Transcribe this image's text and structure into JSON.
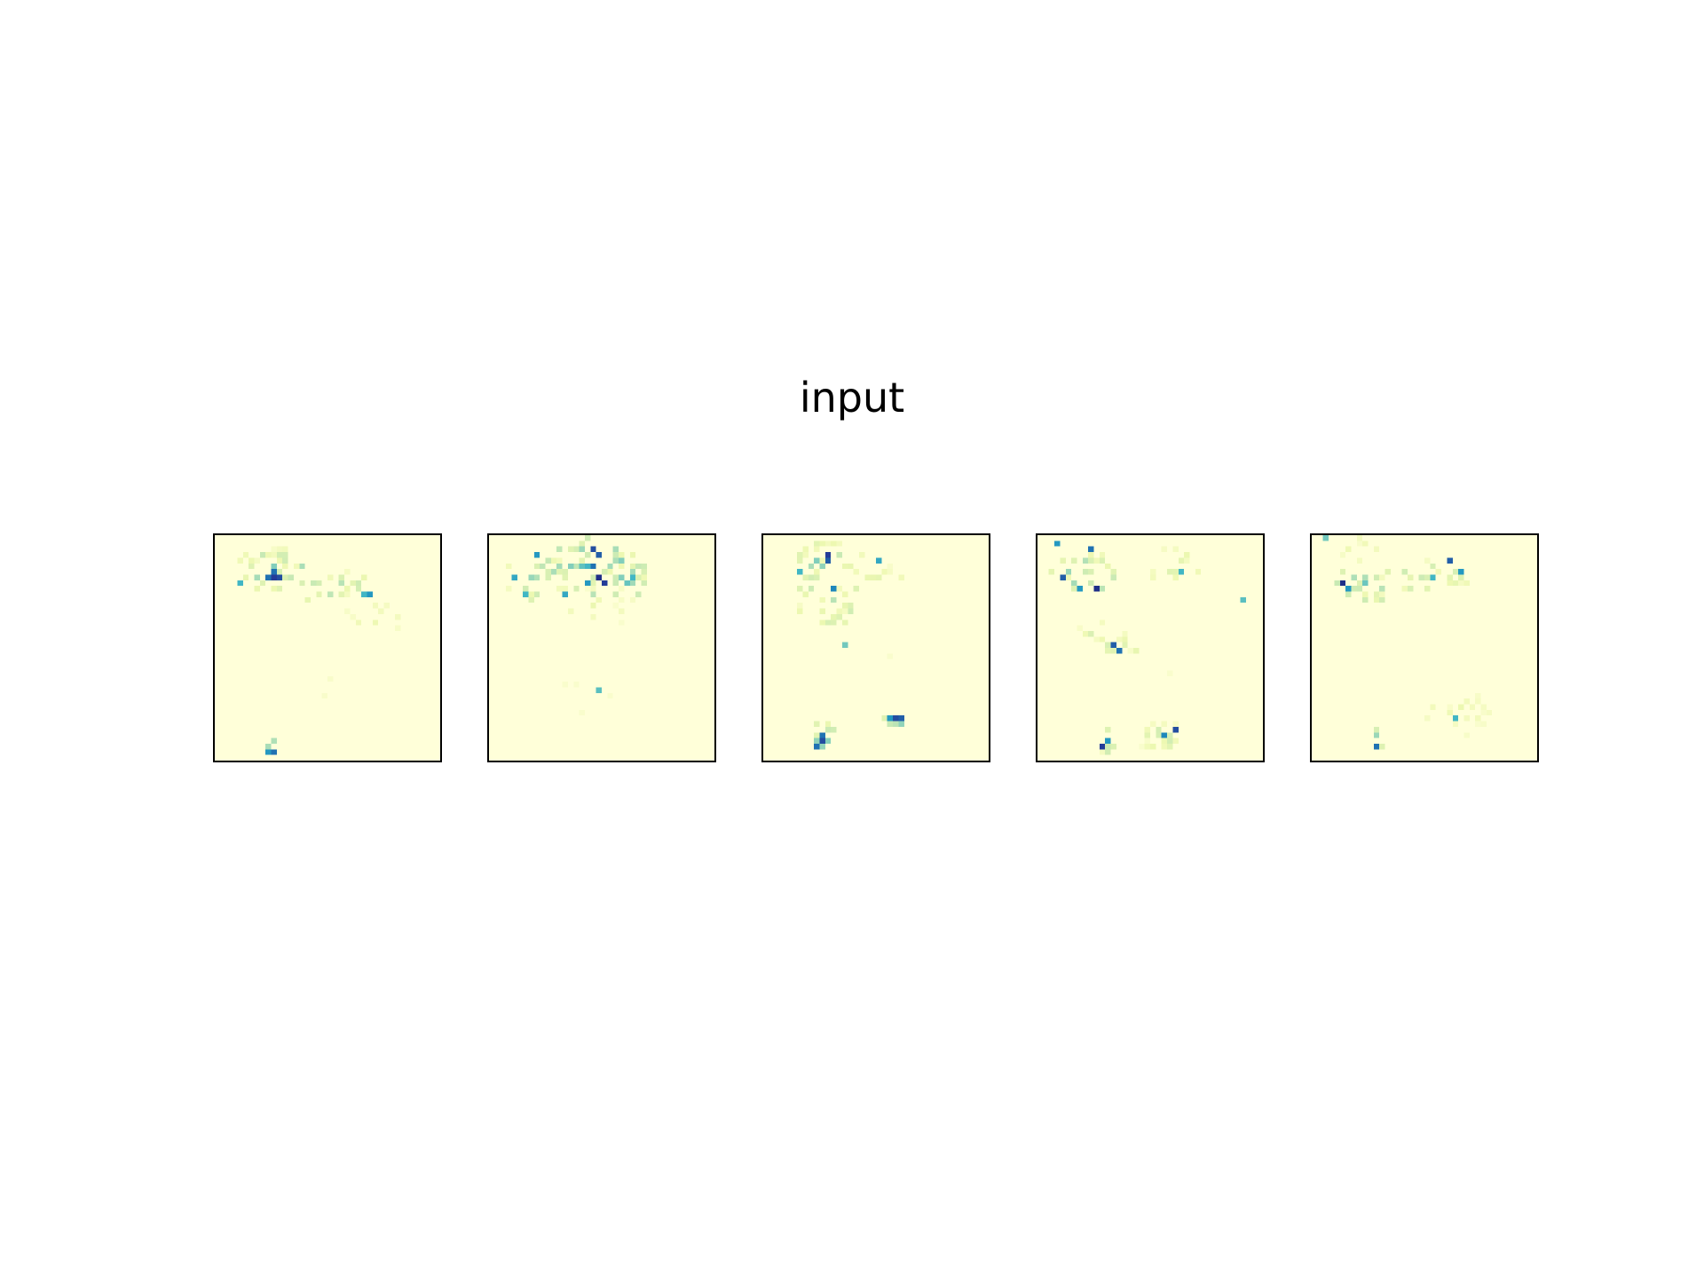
{
  "chart_data": {
    "type": "heatmap",
    "title": "input",
    "colormap": "YlGnBu",
    "grid": false,
    "panel_count": 5,
    "cell_grid": [
      40,
      40
    ],
    "panels": [
      {
        "blobs": [
          {
            "cx": 10,
            "cy": 6,
            "rx": 5,
            "ry": 4,
            "peak": 0.5,
            "count": 26
          },
          {
            "cx": 21,
            "cy": 9,
            "rx": 6,
            "ry": 3,
            "peak": 0.4,
            "count": 24
          },
          {
            "cx": 8,
            "cy": 3,
            "rx": 6,
            "ry": 2,
            "peak": 0.2,
            "count": 14
          },
          {
            "cx": 27,
            "cy": 14,
            "rx": 7,
            "ry": 3,
            "peak": 0.15,
            "count": 16
          },
          {
            "cx": 10,
            "cy": 37,
            "rx": 1,
            "ry": 2,
            "peak": 0.55,
            "count": 8
          },
          {
            "cx": 20,
            "cy": 28,
            "rx": 10,
            "ry": 7,
            "peak": 0.06,
            "count": 20
          }
        ],
        "spots": [
          [
            10,
            7,
            0.85
          ],
          [
            11,
            7,
            0.8
          ],
          [
            9,
            7,
            0.7
          ],
          [
            10,
            6,
            0.7
          ],
          [
            27,
            10,
            0.6
          ],
          [
            26,
            10,
            0.5
          ],
          [
            10,
            38,
            0.7
          ],
          [
            9,
            38,
            0.6
          ],
          [
            4,
            8,
            0.5
          ],
          [
            15,
            5,
            0.3
          ]
        ]
      },
      {
        "blobs": [
          {
            "cx": 18,
            "cy": 5,
            "rx": 9,
            "ry": 5,
            "peak": 0.55,
            "count": 40
          },
          {
            "cx": 8,
            "cy": 7,
            "rx": 6,
            "ry": 4,
            "peak": 0.4,
            "count": 20
          },
          {
            "cx": 24,
            "cy": 8,
            "rx": 4,
            "ry": 3,
            "peak": 0.45,
            "count": 16
          },
          {
            "cx": 18,
            "cy": 12,
            "rx": 8,
            "ry": 4,
            "peak": 0.15,
            "count": 16
          },
          {
            "cx": 18,
            "cy": 28,
            "rx": 10,
            "ry": 6,
            "peak": 0.06,
            "count": 18
          }
        ],
        "spots": [
          [
            18,
            2,
            0.8
          ],
          [
            19,
            3,
            0.75
          ],
          [
            18,
            5,
            0.7
          ],
          [
            19,
            7,
            0.9
          ],
          [
            20,
            8,
            0.85
          ],
          [
            17,
            8,
            0.6
          ],
          [
            8,
            3,
            0.6
          ],
          [
            4,
            7,
            0.55
          ],
          [
            6,
            10,
            0.5
          ],
          [
            13,
            10,
            0.55
          ],
          [
            25,
            7,
            0.5
          ],
          [
            19,
            27,
            0.45
          ]
        ]
      },
      {
        "blobs": [
          {
            "cx": 11,
            "cy": 4,
            "rx": 6,
            "ry": 3,
            "peak": 0.45,
            "count": 22
          },
          {
            "cx": 11,
            "cy": 10,
            "rx": 6,
            "ry": 6,
            "peak": 0.35,
            "count": 30
          },
          {
            "cx": 20,
            "cy": 7,
            "rx": 4,
            "ry": 3,
            "peak": 0.2,
            "count": 10
          },
          {
            "cx": 23,
            "cy": 32,
            "rx": 2,
            "ry": 1,
            "peak": 0.6,
            "count": 10
          },
          {
            "cx": 10,
            "cy": 35,
            "rx": 2,
            "ry": 3,
            "peak": 0.6,
            "count": 12
          },
          {
            "cx": 26,
            "cy": 20,
            "rx": 10,
            "ry": 6,
            "peak": 0.06,
            "count": 18
          }
        ],
        "spots": [
          [
            11,
            3,
            0.85
          ],
          [
            11,
            4,
            0.75
          ],
          [
            12,
            9,
            0.65
          ],
          [
            20,
            4,
            0.55
          ],
          [
            23,
            32,
            0.8
          ],
          [
            24,
            32,
            0.75
          ],
          [
            22,
            32,
            0.6
          ],
          [
            10,
            36,
            0.8
          ],
          [
            10,
            35,
            0.7
          ],
          [
            9,
            37,
            0.7
          ],
          [
            6,
            6,
            0.5
          ],
          [
            14,
            19,
            0.4
          ]
        ]
      },
      {
        "blobs": [
          {
            "cx": 8,
            "cy": 6,
            "rx": 6,
            "ry": 4,
            "peak": 0.5,
            "count": 26
          },
          {
            "cx": 12,
            "cy": 18,
            "rx": 7,
            "ry": 3,
            "peak": 0.3,
            "count": 18
          },
          {
            "cx": 24,
            "cy": 5,
            "rx": 5,
            "ry": 3,
            "peak": 0.2,
            "count": 12
          },
          {
            "cx": 21,
            "cy": 35,
            "rx": 4,
            "ry": 3,
            "peak": 0.3,
            "count": 22
          },
          {
            "cx": 12,
            "cy": 36,
            "rx": 1,
            "ry": 3,
            "peak": 0.5,
            "count": 8
          },
          {
            "cx": 22,
            "cy": 26,
            "rx": 12,
            "ry": 6,
            "peak": 0.05,
            "count": 18
          }
        ],
        "spots": [
          [
            3,
            1,
            0.6
          ],
          [
            9,
            2,
            0.7
          ],
          [
            4,
            7,
            0.75
          ],
          [
            10,
            9,
            0.9
          ],
          [
            7,
            9,
            0.6
          ],
          [
            13,
            19,
            0.75
          ],
          [
            14,
            20,
            0.7
          ],
          [
            24,
            34,
            0.8
          ],
          [
            22,
            35,
            0.65
          ],
          [
            11,
            37,
            0.85
          ],
          [
            12,
            36,
            0.6
          ],
          [
            36,
            11,
            0.45
          ],
          [
            25,
            6,
            0.5
          ]
        ]
      },
      {
        "blobs": [
          {
            "cx": 9,
            "cy": 8,
            "rx": 6,
            "ry": 3,
            "peak": 0.45,
            "count": 22
          },
          {
            "cx": 20,
            "cy": 7,
            "rx": 7,
            "ry": 3,
            "peak": 0.35,
            "count": 20
          },
          {
            "cx": 25,
            "cy": 31,
            "rx": 6,
            "ry": 4,
            "peak": 0.15,
            "count": 24
          },
          {
            "cx": 11,
            "cy": 35,
            "rx": 1,
            "ry": 2,
            "peak": 0.45,
            "count": 6
          },
          {
            "cx": 8,
            "cy": 2,
            "rx": 5,
            "ry": 2,
            "peak": 0.15,
            "count": 10
          }
        ],
        "spots": [
          [
            5,
            8,
            0.9
          ],
          [
            6,
            9,
            0.6
          ],
          [
            24,
            4,
            0.75
          ],
          [
            26,
            6,
            0.6
          ],
          [
            21,
            7,
            0.5
          ],
          [
            25,
            32,
            0.5
          ],
          [
            11,
            37,
            0.7
          ],
          [
            2,
            0,
            0.4
          ]
        ]
      }
    ]
  }
}
